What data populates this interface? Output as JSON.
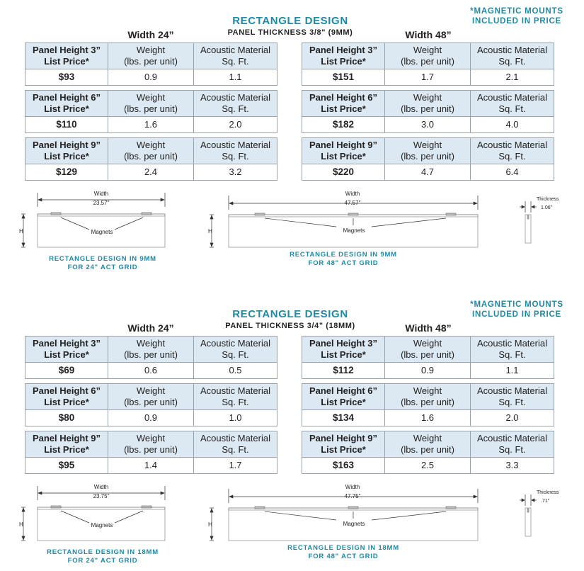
{
  "sections": [
    {
      "title": "RECTANGLE DESIGN",
      "subtitle": "PANEL THICKNESS 3/8\" (9MM)",
      "note_line1": "*MAGNETIC MOUNTS",
      "note_line2": "INCLUDED IN PRICE",
      "groups": [
        {
          "width_header": "Width 24”",
          "rows": [
            {
              "label1": "Panel Height 3”",
              "label2": "List Price*",
              "price": "$93",
              "weight": "0.9",
              "area": "1.1"
            },
            {
              "label1": "Panel Height 6”",
              "label2": "List Price*",
              "price": "$110",
              "weight": "1.6",
              "area": "2.0"
            },
            {
              "label1": "Panel Height 9”",
              "label2": "List Price*",
              "price": "$129",
              "weight": "2.4",
              "area": "3.2"
            }
          ]
        },
        {
          "width_header": "Width 48”",
          "rows": [
            {
              "label1": "Panel Height 3”",
              "label2": "List Price*",
              "price": "$151",
              "weight": "1.7",
              "area": "2.1"
            },
            {
              "label1": "Panel Height 6”",
              "label2": "List Price*",
              "price": "$182",
              "weight": "3.0",
              "area": "4.0"
            },
            {
              "label1": "Panel Height 9”",
              "label2": "List Price*",
              "price": "$220",
              "weight": "4.7",
              "area": "6.4"
            }
          ]
        }
      ],
      "diagrams": {
        "d24": {
          "width_label": "Width",
          "width_value": "23.57\"",
          "h_label": "H",
          "magnets_label": "Magnets",
          "caption1": "RECTANGLE DESIGN IN 9MM",
          "caption2": "FOR 24\" ACT GRID"
        },
        "d48": {
          "width_label": "Width",
          "width_value": "47.57\"",
          "h_label": "H",
          "magnets_label": "Magnets",
          "caption1": "RECTANGLE DESIGN IN 9MM",
          "caption2": "FOR 48\" ACT GRID"
        },
        "thickness": {
          "label": "Thickness",
          "value": "1.06\""
        }
      }
    },
    {
      "title": "RECTANGLE DESIGN",
      "subtitle": "PANEL THICKNESS 3/4\" (18MM)",
      "note_line1": "*MAGNETIC MOUNTS",
      "note_line2": "INCLUDED IN PRICE",
      "groups": [
        {
          "width_header": "Width 24”",
          "rows": [
            {
              "label1": "Panel Height 3”",
              "label2": "List Price*",
              "price": "$69",
              "weight": "0.6",
              "area": "0.5"
            },
            {
              "label1": "Panel Height 6”",
              "label2": "List Price*",
              "price": "$80",
              "weight": "0.9",
              "area": "1.0"
            },
            {
              "label1": "Panel Height 9”",
              "label2": "List Price*",
              "price": "$95",
              "weight": "1.4",
              "area": "1.7"
            }
          ]
        },
        {
          "width_header": "Width 48”",
          "rows": [
            {
              "label1": "Panel Height 3”",
              "label2": "List Price*",
              "price": "$112",
              "weight": "0.9",
              "area": "1.1"
            },
            {
              "label1": "Panel Height 6”",
              "label2": "List Price*",
              "price": "$134",
              "weight": "1.6",
              "area": "2.0"
            },
            {
              "label1": "Panel Height 9”",
              "label2": "List Price*",
              "price": "$163",
              "weight": "2.5",
              "area": "3.3"
            }
          ]
        }
      ],
      "diagrams": {
        "d24": {
          "width_label": "Width",
          "width_value": "23.75\"",
          "h_label": "H",
          "magnets_label": "Magnets",
          "caption1": "RECTANGLE DESIGN IN 18MM",
          "caption2": "FOR 24\" ACT GRID"
        },
        "d48": {
          "width_label": "Width",
          "width_value": "47.75\"",
          "h_label": "H",
          "magnets_label": "Magnets",
          "caption1": "RECTANGLE DESIGN IN 18MM",
          "caption2": "FOR 48\" ACT GRID"
        },
        "thickness": {
          "label": "Thickness",
          "value": ".71\""
        }
      }
    }
  ],
  "table_headers": {
    "weight_line1": "Weight",
    "weight_line2": "(lbs. per unit)",
    "area_line1": "Acoustic Material",
    "area_line2": "Sq. Ft."
  }
}
